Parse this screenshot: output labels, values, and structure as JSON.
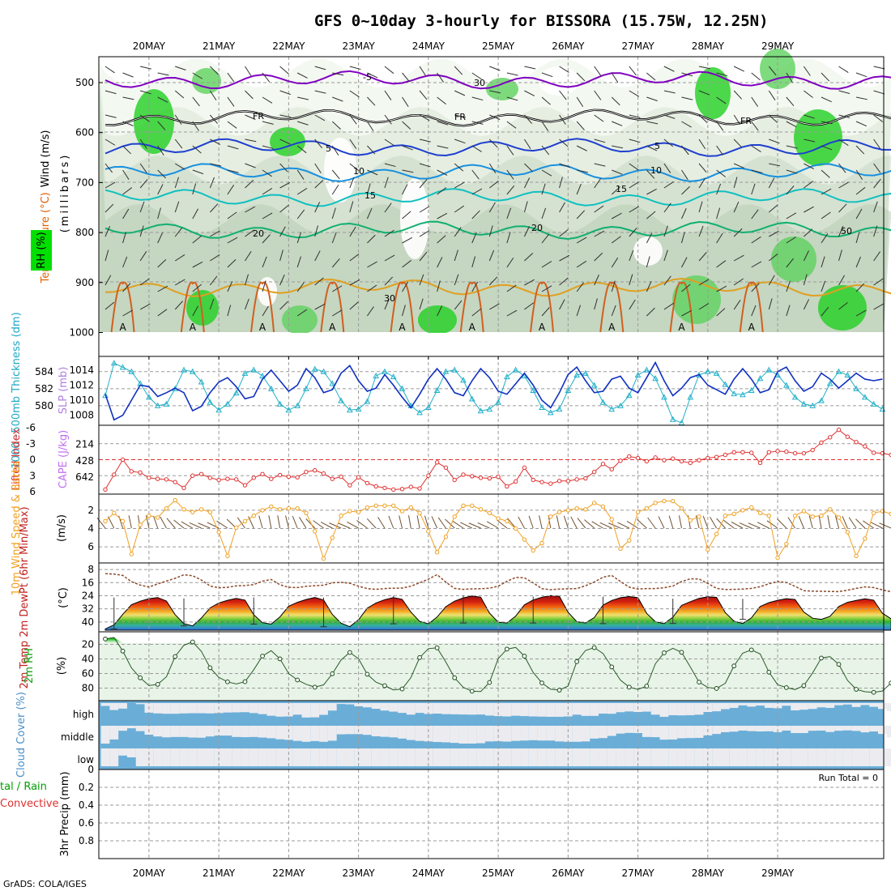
{
  "title": "GFS 0~10day 3-hourly for BISSORA (15.75W, 12.25N)",
  "footer": "GrADS: COLA/IGES",
  "run_total": "Run Total = 0",
  "dates": [
    "20MAY",
    "21MAY",
    "22MAY",
    "23MAY",
    "24MAY",
    "25MAY",
    "26MAY",
    "27MAY",
    "28MAY",
    "29MAY"
  ],
  "colors": {
    "rh_green": "#00e000",
    "temp_purple": "#8000c0",
    "temp_blue": "#1f3fd0",
    "temp_lightblue": "#1890e0",
    "temp_cyan": "#10c0c0",
    "temp_teal": "#10b070",
    "temp_orange": "#e0a020",
    "cape_purple": "#c070f0",
    "li_red": "#e03030",
    "slp_blue": "#1030c0",
    "thick_cyan": "#20b0c8",
    "wind_orange": "#f0a020",
    "cloud_blue": "#6aaed8"
  },
  "labels": {
    "upper": {
      "wind": "Wind (m/s)",
      "temp": "Temperature (°C)",
      "rh": "RH (%)",
      "units": "(millibars)",
      "contours": [
        "-5",
        "FR",
        "FR",
        "FR",
        "5",
        "5",
        "10",
        "10",
        "15",
        "15",
        "20",
        "20",
        "30",
        "50",
        "30"
      ]
    },
    "slp": {
      "thickness": "1000~500mb Thickness (dm)",
      "slp": "SLP (mb)"
    },
    "cape": {
      "li": "Lifted Index",
      "cape": "CAPE (J/kg)"
    },
    "wind10": {
      "name": "10m Wind Speed & Barbs",
      "unit": "(m/s)"
    },
    "temp2m": {
      "name": "2m Temp 2m DewPt (6hr Min/Max)",
      "unit": "(°C)"
    },
    "rh2m": {
      "name": "2m RH",
      "unit": "(%)"
    },
    "cloud": {
      "name": "Cloud Cover (%)",
      "levels": [
        "high",
        "middle",
        "low"
      ]
    },
    "precip": {
      "name": "3hr Precip (mm)",
      "total": "tal / Rain",
      "conv": "Convective"
    }
  },
  "chart_data": [
    {
      "panel": "upper-air cross section",
      "type": "heatmap",
      "x": "time (20MAY-29MAY)",
      "y_ticks": [
        "500",
        "600",
        "700",
        "800",
        "900",
        "1000"
      ],
      "contours": [
        {
          "temp": -5,
          "pressure": 495
        },
        {
          "temp": 0,
          "label": "FR",
          "pressure": 570
        },
        {
          "temp": 5,
          "pressure": 630
        },
        {
          "temp": 10,
          "pressure": 680
        },
        {
          "temp": 15,
          "pressure": 730
        },
        {
          "temp": 20,
          "pressure": 795
        },
        {
          "temp": 30,
          "pressure": 910
        }
      ]
    },
    {
      "panel": "slp-thickness",
      "type": "line",
      "thickness_ticks": [
        "584",
        "582",
        "580"
      ],
      "slp_ticks": [
        "1014",
        "1012",
        "1010",
        "1008"
      ],
      "thickness": [
        581.2,
        585.0,
        584.5,
        584.0,
        582.6,
        581.0,
        580.0,
        580.2,
        582.0,
        584.2,
        584.0,
        582.8,
        580.4,
        579.5,
        580.2,
        581.5,
        583.8,
        584.2,
        583.5,
        582.0,
        580.2,
        579.5,
        580.0,
        582.0,
        584.3,
        584.0,
        582.6,
        580.6,
        579.5,
        579.6,
        580.5,
        583.5,
        584.0,
        583.4,
        582.0,
        580.0,
        579.2,
        579.8,
        581.8,
        584.0,
        584.2,
        583.0,
        580.8,
        579.4,
        579.6,
        580.4,
        583.4,
        584.2,
        583.5,
        581.8,
        579.8,
        579.2,
        579.6,
        581.8,
        583.6,
        583.8,
        582.4,
        580.4,
        579.6,
        580.0,
        581.2,
        583.6,
        584.2,
        583.2,
        581.0,
        578.4,
        578.0,
        581.0,
        583.6,
        584.0,
        583.8,
        582.5,
        581.4,
        581.3,
        581.8,
        583.2,
        584.2,
        583.6,
        582.4,
        581.0,
        580.2,
        580.0,
        580.6,
        582.6,
        584.0,
        583.6,
        582.0,
        581.0,
        580.2,
        579.6
      ],
      "slp": [
        1010.8,
        1007.4,
        1008.0,
        1010.0,
        1012.0,
        1011.8,
        1010.5,
        1011.0,
        1011.6,
        1011.0,
        1008.6,
        1009.2,
        1011.0,
        1012.4,
        1013.0,
        1011.8,
        1010.2,
        1010.5,
        1012.8,
        1014.0,
        1012.6,
        1011.2,
        1012.0,
        1014.2,
        1013.0,
        1011.0,
        1011.4,
        1013.6,
        1014.6,
        1012.6,
        1011.2,
        1011.6,
        1013.4,
        1012.0,
        1010.4,
        1009.0,
        1010.8,
        1012.8,
        1014.2,
        1012.8,
        1011.0,
        1010.6,
        1012.6,
        1014.2,
        1013.0,
        1011.2,
        1010.8,
        1012.2,
        1013.6,
        1012.0,
        1010.0,
        1009.0,
        1011.0,
        1013.4,
        1014.4,
        1012.6,
        1011.0,
        1011.2,
        1012.8,
        1013.2,
        1011.6,
        1011.0,
        1013.0,
        1015.0,
        1012.6,
        1010.6,
        1011.6,
        1013.0,
        1013.4,
        1012.0,
        1011.4,
        1010.8,
        1012.8,
        1014.2,
        1012.8,
        1011.0,
        1011.4,
        1013.8,
        1014.4,
        1012.6,
        1011.2,
        1011.8,
        1013.6,
        1012.8,
        1011.6,
        1012.6,
        1013.6,
        1012.8,
        1012.6,
        1012.8
      ]
    },
    {
      "panel": "cape-li",
      "type": "bar",
      "li_ticks": [
        "-6",
        "-3",
        "0",
        "3",
        "6"
      ],
      "cape_ticks": [
        "642",
        "428",
        "214"
      ],
      "lifted_index": [
        5.6,
        2.8,
        0.0,
        2.2,
        2.4,
        3.4,
        3.6,
        3.7,
        4.2,
        5.3,
        3.0,
        2.7,
        3.4,
        3.8,
        3.6,
        3.7,
        4.8,
        3.4,
        2.7,
        3.6,
        2.9,
        3.2,
        3.3,
        2.3,
        2.0,
        2.6,
        3.6,
        3.2,
        4.8,
        3.3,
        4.4,
        5.0,
        5.3,
        5.6,
        5.5,
        5.1,
        5.4,
        3.0,
        0.5,
        1.5,
        3.8,
        2.8,
        3.1,
        3.4,
        3.5,
        3.2,
        5.0,
        4.1,
        1.5,
        3.8,
        4.2,
        4.5,
        4.0,
        4.0,
        3.7,
        3.5,
        2.3,
        0.8,
        1.8,
        0.2,
        -0.6,
        -0.3,
        0.3,
        -0.4,
        0.1,
        -0.2,
        0.3,
        0.6,
        0.1,
        -0.3,
        -0.5,
        -0.9,
        -1.4,
        -1.4,
        -1.3,
        0.6,
        -1.4,
        -1.6,
        -1.5,
        -1.2,
        -1.2,
        -1.8,
        -3.2,
        -4.2,
        -5.6,
        -4.3,
        -3.3,
        -2.5,
        -1.3,
        -1.2,
        -0.9
      ],
      "cape": [
        0,
        0,
        0,
        0,
        0,
        0,
        0,
        0,
        0,
        0,
        0,
        0,
        0,
        0,
        0,
        0,
        0,
        0,
        0,
        0,
        0,
        0,
        0,
        0,
        0,
        0,
        0,
        0,
        0,
        0,
        0,
        0,
        0,
        0,
        0,
        0,
        0,
        0,
        0,
        0,
        0,
        0,
        0,
        0,
        0,
        0,
        0,
        0,
        0,
        0,
        0,
        0,
        0,
        0,
        0,
        0,
        0,
        0,
        0,
        0,
        0,
        0,
        0,
        0,
        0,
        0,
        0,
        0,
        0,
        0,
        0,
        0,
        0,
        0,
        0,
        0,
        0,
        0,
        0,
        0,
        0,
        0,
        0,
        0,
        0,
        0,
        0,
        0,
        0,
        0,
        0
      ]
    },
    {
      "panel": "10m wind",
      "type": "line",
      "y_ticks": [
        "6",
        "4",
        "2"
      ],
      "ylim": [
        0.5,
        7.5
      ],
      "speed": [
        3.2,
        2.3,
        3.2,
        6.8,
        3.6,
        2.6,
        2.8,
        1.8,
        0.9,
        1.9,
        2.2,
        1.9,
        2.2,
        4.4,
        7.0,
        3.9,
        3.2,
        2.6,
        2.0,
        1.6,
        1.9,
        1.8,
        1.8,
        2.3,
        4.3,
        7.3,
        5.0,
        2.6,
        2.1,
        2.2,
        1.7,
        1.5,
        1.5,
        1.5,
        2.1,
        1.7,
        2.3,
        4.3,
        6.6,
        4.9,
        2.7,
        1.5,
        1.5,
        1.9,
        2.3,
        2.9,
        3.2,
        4.0,
        5.2,
        6.4,
        5.6,
        2.7,
        2.2,
        2.0,
        1.8,
        1.9,
        1.2,
        1.6,
        3.0,
        6.2,
        5.3,
        2.2,
        1.8,
        1.2,
        1.0,
        1.0,
        1.8,
        3.1,
        2.7,
        6.3,
        4.6,
        2.6,
        2.4,
        2.0,
        1.7,
        2.3,
        2.6,
        7.2,
        5.7,
        2.6,
        2.1,
        2.7,
        2.6,
        1.9,
        2.8,
        4.4,
        7.0,
        5.1,
        2.3,
        2.1,
        2.4
      ]
    },
    {
      "panel": "2m temp",
      "type": "area",
      "y_ticks": [
        "40",
        "32",
        "24",
        "16",
        "8"
      ],
      "ylim": [
        5,
        45
      ],
      "temperature": [
        44.2,
        41.8,
        35.3,
        29.5,
        27.3,
        25.8,
        25.1,
        27.2,
        35.5,
        41.0,
        42.4,
        37.6,
        31.4,
        28.4,
        26.8,
        25.6,
        26.7,
        35.6,
        40.4,
        41.3,
        36.9,
        30.4,
        28.0,
        26.3,
        25.1,
        26.6,
        35.4,
        40.7,
        42.9,
        38.7,
        31.6,
        28.4,
        26.4,
        25.1,
        26.2,
        34.0,
        39.6,
        41.1,
        37.0,
        30.7,
        27.3,
        25.3,
        24.1,
        24.9,
        34.6,
        40.1,
        40.6,
        36.4,
        29.6,
        26.6,
        24.9,
        23.9,
        24.3,
        34.1,
        39.8,
        40.6,
        37.3,
        29.7,
        26.9,
        25.2,
        24.5,
        25.2,
        34.8,
        39.8,
        41.0,
        37.1,
        29.9,
        27.6,
        25.6,
        24.6,
        25.0,
        34.3,
        39.5,
        40.9,
        37.5,
        30.6,
        28.2,
        26.8,
        25.8,
        26.3,
        34.0,
        37.7,
        38.4,
        36.6,
        30.6,
        28.0,
        26.9,
        25.9,
        26.7,
        34.7,
        38.1
      ],
      "dewpoint": [
        10.6,
        10.8,
        11.6,
        15.4,
        17.5,
        18.7,
        16.8,
        15.0,
        13.4,
        11.2,
        11.8,
        14.4,
        18.1,
        19.1,
        18.9,
        18.0,
        17.8,
        17.2,
        15.1,
        14.1,
        17.3,
        18.9,
        19.0,
        18.3,
        17.9,
        17.6,
        16.1,
        15.8,
        16.4,
        18.2,
        19.6,
        20.1,
        19.6,
        19.4,
        19.3,
        18.2,
        16.1,
        13.9,
        11.1,
        15.7,
        19.5,
        20.1,
        19.8,
        19.7,
        19.4,
        18.2,
        15.2,
        12.8,
        13.1,
        16.1,
        19.7,
        20.3,
        19.9,
        19.8,
        19.6,
        17.9,
        15.6,
        12.7,
        11.6,
        15.3,
        18.8,
        19.9,
        19.6,
        19.6,
        19.1,
        18.1,
        15.3,
        13.7,
        13.8,
        16.5,
        19.5,
        20.2,
        20.1,
        19.9,
        19.5,
        18.5,
        16.7,
        15.3,
        15.9,
        18.3,
        20.9,
        21.2,
        21.3,
        21.4,
        21.5,
        20.6,
        19.5,
        18.6,
        19.0,
        20.4,
        21.6
      ],
      "daily_max_whisker": [
        44.2,
        42.4,
        41.3,
        42.9,
        41.1,
        40.6,
        40.6,
        41.0,
        40.9,
        38.4
      ],
      "daily_min_whisker": [
        25.1,
        25.6,
        25.1,
        25.1,
        24.1,
        23.9,
        24.5,
        24.6,
        25.8,
        25.9
      ]
    },
    {
      "panel": "2m RH",
      "type": "area",
      "y_ticks": [
        "80",
        "60",
        "40",
        "20"
      ],
      "ylim": [
        5,
        95
      ],
      "rh": [
        12.6,
        10.7,
        29.2,
        52.3,
        65.9,
        76.5,
        74.9,
        64.4,
        36.7,
        21.2,
        16.7,
        29.7,
        52.1,
        65.2,
        71.4,
        74.3,
        71.2,
        54.8,
        36.1,
        28.7,
        39.9,
        60.0,
        68.9,
        74.8,
        78.7,
        75.6,
        60.3,
        41.3,
        31.1,
        39.7,
        61.0,
        71.9,
        76.7,
        82.4,
        81.2,
        65.6,
        38.1,
        25.9,
        24.8,
        44.1,
        65.9,
        79.0,
        84.3,
        84.7,
        72.3,
        39.5,
        26.5,
        24.2,
        36.2,
        58.4,
        72.9,
        81.5,
        82.8,
        77.2,
        43.7,
        28.3,
        24.5,
        32.6,
        51.0,
        69.0,
        78.7,
        81.8,
        77.3,
        46.7,
        31.6,
        25.4,
        30.9,
        51.1,
        71.8,
        79.1,
        80.5,
        73.3,
        49.6,
        32.1,
        27.6,
        33.2,
        58.1,
        75.3,
        79.3,
        82.0,
        76.6,
        59.2,
        38.8,
        36.8,
        47.4,
        69.4,
        81.7,
        85.0,
        85.8,
        84.0,
        73.0
      ],
      "bands": [
        "80",
        "60",
        "40",
        "20"
      ]
    },
    {
      "panel": "cloud cover",
      "type": "area",
      "y_ticks": [
        "high",
        "middle",
        "low"
      ],
      "high": [
        84,
        61,
        69,
        100,
        94,
        46,
        42,
        40,
        40,
        42,
        43,
        43,
        42,
        44,
        47,
        48,
        49,
        44,
        38,
        29,
        24,
        25,
        35,
        19,
        20,
        34,
        58,
        95,
        93,
        82,
        76,
        68,
        58,
        52,
        45,
        35,
        45,
        39,
        41,
        38,
        37,
        36,
        35,
        36,
        30,
        27,
        25,
        29,
        27,
        25,
        24,
        23,
        23,
        25,
        35,
        28,
        28,
        41,
        40,
        49,
        53,
        50,
        52,
        35,
        23,
        32,
        31,
        32,
        35,
        50,
        54,
        66,
        73,
        87,
        80,
        86,
        73,
        71,
        85,
        59,
        63,
        67,
        76,
        73,
        88,
        92,
        78,
        89,
        79,
        67,
        55
      ],
      "middle": [
        0,
        23,
        72,
        86,
        70,
        50,
        40,
        35,
        37,
        37,
        34,
        33,
        40,
        45,
        45,
        37,
        36,
        37,
        34,
        30,
        24,
        21,
        15,
        10,
        14,
        10,
        16,
        52,
        53,
        53,
        49,
        41,
        38,
        35,
        28,
        20,
        15,
        12,
        9,
        7,
        4,
        0,
        0,
        2,
        12,
        13,
        11,
        15,
        17,
        19,
        17,
        17,
        12,
        10,
        10,
        12,
        28,
        31,
        43,
        56,
        60,
        59,
        37,
        36,
        22,
        23,
        30,
        31,
        32,
        46,
        54,
        64,
        67,
        73,
        70,
        68,
        69,
        64,
        73,
        59,
        59,
        72,
        73,
        65,
        72,
        74,
        71,
        63,
        68,
        54,
        35
      ],
      "low": [
        0,
        0,
        60,
        50,
        0,
        0,
        0,
        0,
        0,
        0,
        0,
        0,
        0,
        0,
        0,
        0,
        0,
        0,
        0,
        0,
        0,
        0,
        0,
        0,
        0,
        0,
        0,
        0,
        0,
        0,
        0,
        0,
        0,
        0,
        0,
        0,
        0,
        0,
        0,
        0,
        0,
        0,
        0,
        0,
        0,
        0,
        0,
        0,
        0,
        0,
        0,
        0,
        0,
        0,
        0,
        0,
        0,
        0,
        0,
        0,
        0,
        0,
        0,
        0,
        0,
        0,
        0,
        0,
        0,
        0,
        0,
        0,
        0,
        0,
        0,
        0,
        0,
        0,
        0,
        0,
        0,
        0,
        0,
        0,
        0,
        0,
        0,
        0,
        0,
        0,
        0
      ]
    },
    {
      "panel": "3hr precip",
      "type": "bar",
      "y_ticks": [
        "0.8",
        "0.6",
        "0.4",
        "0.2",
        "0"
      ],
      "ylim": [
        0,
        1.0
      ],
      "precip": []
    }
  ]
}
